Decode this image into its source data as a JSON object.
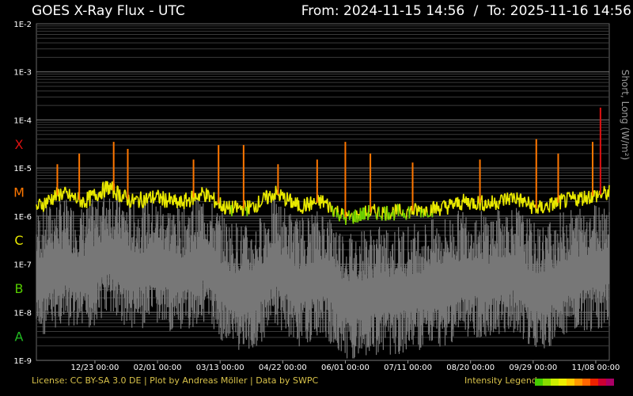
{
  "header": {
    "title": "GOES X-Ray Flux - UTC",
    "from_label": "From:",
    "from_value": "2024-11-15 14:56",
    "separator": "/",
    "to_label": "To:",
    "to_value": "2025-11-16 14:56"
  },
  "footer": {
    "license": "License: CC BY-SA 3.0 DE | Plot by Andreas Möller | Data by SWPC",
    "legend_label": "Intensity Legend",
    "legend_colors": [
      "#44cc00",
      "#88dd00",
      "#ccee00",
      "#eeee00",
      "#ffcc00",
      "#ff9900",
      "#ff6600",
      "#ee2200",
      "#cc0033",
      "#aa0066"
    ]
  },
  "chart_data": {
    "type": "line",
    "title": "GOES X-Ray Flux - UTC",
    "ylabel": "Short, Long (W/m²)",
    "yscale": "log",
    "ylim": [
      1e-09,
      0.01
    ],
    "y_ticks": [
      "1E-2",
      "1E-3",
      "1E-4",
      "1E-5",
      "1E-6",
      "1E-7",
      "1E-8",
      "1E-9"
    ],
    "flare_classes": [
      {
        "label": "X",
        "color": "#dd1111"
      },
      {
        "label": "M",
        "color": "#ff7700"
      },
      {
        "label": "C",
        "color": "#e8e800"
      },
      {
        "label": "B",
        "color": "#55cc00"
      },
      {
        "label": "A",
        "color": "#22bb22"
      }
    ],
    "x_ticks": [
      "12/23 00:00",
      "02/01 00:00",
      "03/13 00:00",
      "04/22 00:00",
      "06/01 00:00",
      "07/11 00:00",
      "08/20 00:00",
      "09/29 00:00",
      "11/08 00:00"
    ],
    "grid": true,
    "series": [
      {
        "name": "Long",
        "color": "#e8e800",
        "x": [
          "2024-11-15",
          "2024-12-01",
          "2024-12-15",
          "2025-01-01",
          "2025-01-15",
          "2025-02-01",
          "2025-02-15",
          "2025-03-01",
          "2025-03-15",
          "2025-04-01",
          "2025-04-15",
          "2025-05-01",
          "2025-05-15",
          "2025-06-01",
          "2025-06-15",
          "2025-07-01",
          "2025-07-15",
          "2025-08-01",
          "2025-08-15",
          "2025-09-01",
          "2025-09-15",
          "2025-10-01",
          "2025-10-15",
          "2025-11-01",
          "2025-11-16"
        ],
        "values": [
          1.5e-06,
          3e-06,
          2e-06,
          4e-06,
          2e-06,
          2.5e-06,
          1.8e-06,
          3e-06,
          1.4e-06,
          1.5e-06,
          3e-06,
          1.6e-06,
          2e-06,
          9e-07,
          1.2e-06,
          1.2e-06,
          1.3e-06,
          1.5e-06,
          2e-06,
          1.8e-06,
          2.5e-06,
          1.4e-06,
          2e-06,
          2.5e-06,
          3e-06
        ]
      },
      {
        "name": "Short",
        "color": "#777777",
        "x": [
          "2024-11-15",
          "2024-12-01",
          "2024-12-15",
          "2025-01-01",
          "2025-01-15",
          "2025-02-01",
          "2025-02-15",
          "2025-03-01",
          "2025-03-15",
          "2025-04-01",
          "2025-04-15",
          "2025-05-01",
          "2025-05-15",
          "2025-06-01",
          "2025-06-15",
          "2025-07-01",
          "2025-07-15",
          "2025-08-01",
          "2025-08-15",
          "2025-09-01",
          "2025-09-15",
          "2025-10-01",
          "2025-10-15",
          "2025-11-01",
          "2025-11-16"
        ],
        "values": [
          4e-08,
          8e-08,
          5e-08,
          1.5e-07,
          6e-08,
          8e-08,
          5e-08,
          1e-07,
          3e-08,
          2e-08,
          8e-08,
          3e-08,
          5e-08,
          1.5e-08,
          2e-08,
          2e-08,
          2.5e-08,
          3e-08,
          5e-08,
          4e-08,
          6e-08,
          2e-08,
          4e-08,
          6e-08,
          8e-08
        ]
      }
    ],
    "peak_flux": [
      {
        "x": "2024-11-29",
        "value": 1.2e-05
      },
      {
        "x": "2024-12-13",
        "value": 2e-05
      },
      {
        "x": "2025-01-04",
        "value": 3.5e-05
      },
      {
        "x": "2025-01-13",
        "value": 2.5e-05
      },
      {
        "x": "2025-02-24",
        "value": 1.5e-05
      },
      {
        "x": "2025-03-12",
        "value": 3e-05
      },
      {
        "x": "2025-03-28",
        "value": 3e-05
      },
      {
        "x": "2025-04-19",
        "value": 1.2e-05
      },
      {
        "x": "2025-05-14",
        "value": 1.5e-05
      },
      {
        "x": "2025-06-01",
        "value": 3.5e-05
      },
      {
        "x": "2025-06-17",
        "value": 2e-05
      },
      {
        "x": "2025-07-14",
        "value": 1.3e-05
      },
      {
        "x": "2025-08-26",
        "value": 1.5e-05
      },
      {
        "x": "2025-10-01",
        "value": 4e-05
      },
      {
        "x": "2025-10-15",
        "value": 2e-05
      },
      {
        "x": "2025-11-06",
        "value": 3.5e-05
      },
      {
        "x": "2025-11-11",
        "value": 0.00018
      }
    ]
  }
}
